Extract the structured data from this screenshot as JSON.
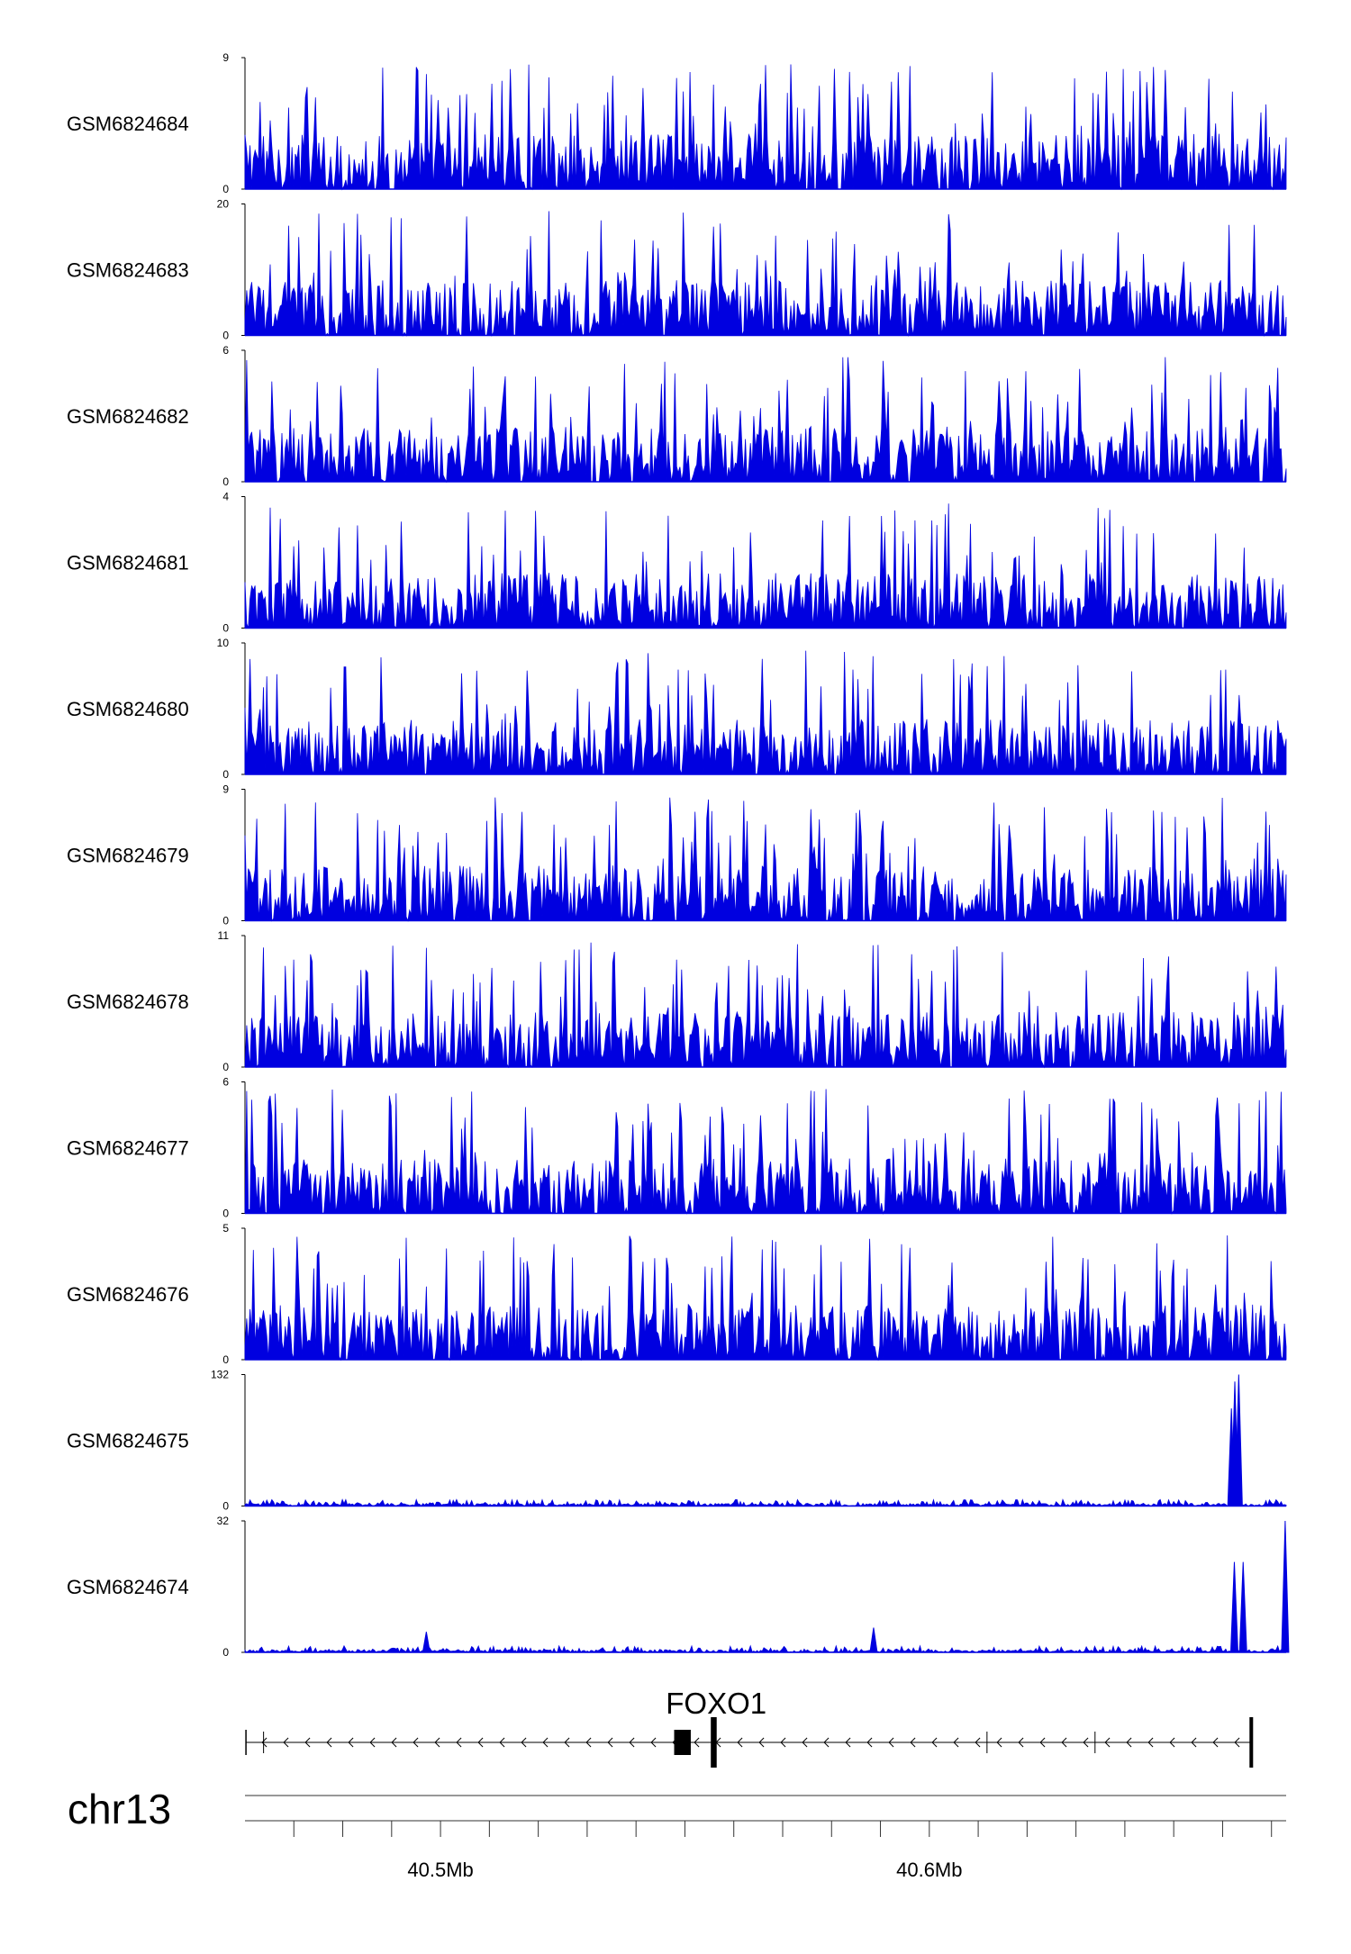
{
  "chart_data": {
    "type": "area",
    "title": "",
    "chromosome": "chr13",
    "x_unit": "Mb",
    "xlim": [
      40.46,
      40.673
    ],
    "series_color": "#0000e0",
    "tracks": [
      {
        "name": "GSM6824684",
        "ylim": [
          0,
          9
        ],
        "y_ticks": [
          "9",
          "0"
        ],
        "peaks": []
      },
      {
        "name": "GSM6824683",
        "ylim": [
          0,
          20
        ],
        "y_ticks": [
          "20",
          "0"
        ],
        "peaks": []
      },
      {
        "name": "GSM6824682",
        "ylim": [
          0,
          6
        ],
        "y_ticks": [
          "6",
          "0"
        ],
        "peaks": []
      },
      {
        "name": "GSM6824681",
        "ylim": [
          0,
          4
        ],
        "y_ticks": [
          "4",
          "0"
        ],
        "peaks": []
      },
      {
        "name": "GSM6824680",
        "ylim": [
          0,
          10
        ],
        "y_ticks": [
          "10",
          "0"
        ],
        "peaks": []
      },
      {
        "name": "GSM6824679",
        "ylim": [
          0,
          9
        ],
        "y_ticks": [
          "9",
          "0"
        ],
        "peaks": []
      },
      {
        "name": "GSM6824678",
        "ylim": [
          0,
          11
        ],
        "y_ticks": [
          "11",
          "0"
        ],
        "peaks": []
      },
      {
        "name": "GSM6824677",
        "ylim": [
          0,
          6
        ],
        "y_ticks": [
          "6",
          "0"
        ],
        "peaks": []
      },
      {
        "name": "GSM6824676",
        "ylim": [
          0,
          5
        ],
        "y_ticks": [
          "5",
          "0"
        ],
        "peaks": []
      },
      {
        "name": "GSM6824675",
        "ylim": [
          0,
          132
        ],
        "y_ticks": [
          "132",
          "0"
        ],
        "peaks": [
          {
            "x": 40.6625,
            "y": 125
          },
          {
            "x": 40.6633,
            "y": 132
          },
          {
            "x": 40.6618,
            "y": 98
          }
        ]
      },
      {
        "name": "GSM6824674",
        "ylim": [
          0,
          32
        ],
        "y_ticks": [
          "32",
          "0"
        ],
        "peaks": [
          {
            "x": 40.6624,
            "y": 22
          },
          {
            "x": 40.6642,
            "y": 22
          },
          {
            "x": 40.6728,
            "y": 32
          },
          {
            "x": 40.4971,
            "y": 5
          },
          {
            "x": 40.5886,
            "y": 6
          }
        ]
      }
    ],
    "gene": {
      "name": "FOXO1",
      "strand": "-",
      "start": 40.4602,
      "end": 40.6661,
      "exons": [
        [
          40.5478,
          40.5512
        ],
        [
          40.5553,
          40.5565
        ],
        [
          40.6655,
          40.6661
        ]
      ],
      "introns_marks": [
        40.4638,
        40.6118,
        40.6339
      ]
    },
    "x_axis": {
      "minor_ticks": [
        40.47,
        40.48,
        40.49,
        40.5,
        40.51,
        40.52,
        40.53,
        40.54,
        40.55,
        40.56,
        40.57,
        40.58,
        40.59,
        40.6,
        40.61,
        40.62,
        40.63,
        40.64,
        40.65,
        40.66,
        40.67
      ],
      "major_ticks": [
        40.5,
        40.6
      ],
      "major_labels": [
        "40.5Mb",
        "40.6Mb"
      ]
    }
  }
}
